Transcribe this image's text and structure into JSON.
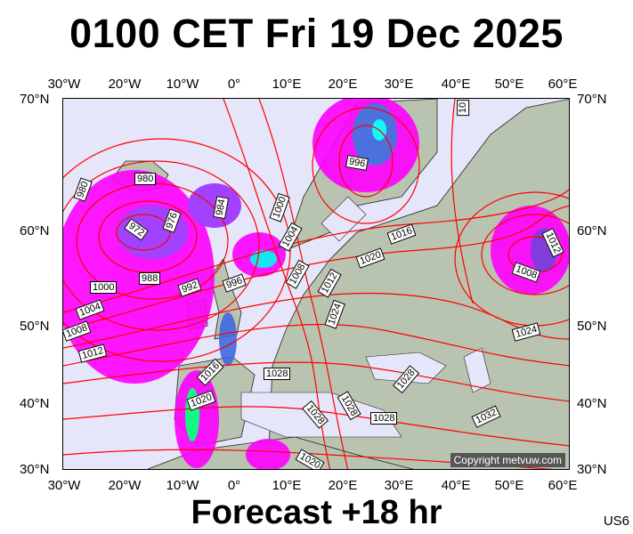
{
  "title": "0100 CET Fri 19 Dec 2025",
  "footer": "Forecast +18 hr",
  "model": "US6",
  "copyright": "Copyright metvuw.com",
  "lon_labels": [
    "30°W",
    "20°W",
    "10°W",
    "0°",
    "10°E",
    "20°E",
    "30°E",
    "40°E",
    "50°E",
    "60°E"
  ],
  "lat_labels": [
    "70°N",
    "60°N",
    "50°N",
    "40°N",
    "30°N"
  ],
  "isobar_labels": [
    "980",
    "980",
    "972",
    "976",
    "984",
    "1000",
    "1004",
    "1008",
    "1012",
    "988",
    "992",
    "996",
    "1000",
    "1004",
    "1008",
    "1012",
    "996",
    "1016",
    "1020",
    "1024",
    "1008",
    "1012",
    "1024",
    "1028",
    "1028",
    "1028",
    "1028",
    "1028",
    "1032",
    "1020",
    "1016",
    "1020",
    "10"
  ],
  "colors": {
    "sea": "#e6e6fa",
    "land": "#b8c4b0",
    "isobar": "#ff0000",
    "precip_light": "#ff00ff",
    "precip_mid": "#8a2be2",
    "precip_heavy": "#00ffff"
  }
}
